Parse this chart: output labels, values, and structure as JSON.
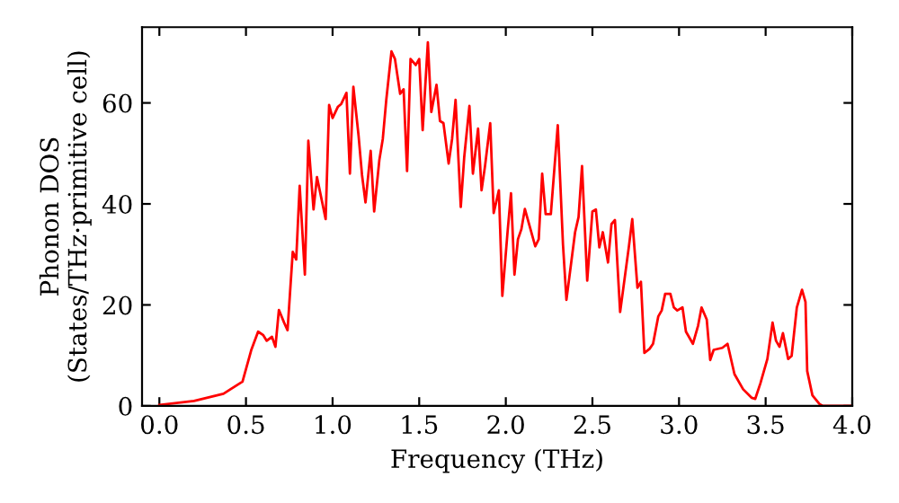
{
  "chart_data": {
    "type": "line",
    "xlabel": "Frequency (THz)",
    "ylabel": "Phonon DOS\n(States/THz·primitive cell)",
    "xlim": [
      -0.1,
      4.0
    ],
    "ylim": [
      0,
      75
    ],
    "xticks": [
      {
        "value": 0,
        "label": "0.0"
      },
      {
        "value": 0.5,
        "label": "0.5"
      },
      {
        "value": 1,
        "label": "1.0"
      },
      {
        "value": 1.5,
        "label": "1.5"
      },
      {
        "value": 2,
        "label": "2.0"
      },
      {
        "value": 2.5,
        "label": "2.5"
      },
      {
        "value": 3,
        "label": "3.0"
      },
      {
        "value": 3.5,
        "label": "3.5"
      },
      {
        "value": 4,
        "label": "4.0"
      }
    ],
    "yticks": [
      0,
      20,
      40,
      60
    ],
    "grid": false,
    "legend": false,
    "marker": "none",
    "line_style": "solid",
    "series": [
      {
        "color": "#ff0000",
        "x": [
          0,
          0.2,
          0.37,
          0.48,
          0.53,
          0.57,
          0.6,
          0.62,
          0.65,
          0.67,
          0.69,
          0.72,
          0.74,
          0.77,
          0.79,
          0.81,
          0.84,
          0.86,
          0.89,
          0.91,
          0.96,
          0.98,
          1.0,
          1.03,
          1.05,
          1.08,
          1.1,
          1.12,
          1.15,
          1.17,
          1.19,
          1.22,
          1.24,
          1.27,
          1.29,
          1.31,
          1.34,
          1.36,
          1.39,
          1.41,
          1.43,
          1.45,
          1.48,
          1.5,
          1.52,
          1.55,
          1.57,
          1.6,
          1.62,
          1.64,
          1.67,
          1.69,
          1.71,
          1.74,
          1.76,
          1.79,
          1.81,
          1.84,
          1.86,
          1.88,
          1.91,
          1.93,
          1.96,
          1.98,
          2.01,
          2.03,
          2.05,
          2.07,
          2.09,
          2.11,
          2.17,
          2.19,
          2.21,
          2.23,
          2.26,
          2.3,
          2.33,
          2.35,
          2.4,
          2.42,
          2.44,
          2.47,
          2.5,
          2.52,
          2.54,
          2.56,
          2.59,
          2.61,
          2.63,
          2.66,
          2.71,
          2.73,
          2.76,
          2.78,
          2.8,
          2.83,
          2.85,
          2.88,
          2.9,
          2.92,
          2.95,
          2.97,
          2.99,
          3.02,
          3.04,
          3.08,
          3.11,
          3.13,
          3.16,
          3.18,
          3.2,
          3.25,
          3.28,
          3.32,
          3.37,
          3.42,
          3.44,
          3.47,
          3.51,
          3.54,
          3.56,
          3.58,
          3.6,
          3.63,
          3.65,
          3.68,
          3.71,
          3.73,
          3.74,
          3.77,
          3.81,
          3.83,
          4.0
        ],
        "values": [
          0.2,
          1,
          2.4,
          4.8,
          11,
          14.7,
          14,
          12.9,
          13.7,
          11.7,
          19,
          16.5,
          15,
          30.5,
          29,
          43.6,
          26,
          52.5,
          38.9,
          45.3,
          37,
          59.6,
          57,
          59.2,
          59.8,
          62,
          46,
          63.2,
          53.5,
          45.7,
          40.3,
          50.5,
          38.5,
          48.7,
          52.9,
          60.6,
          70.2,
          68.7,
          61.8,
          62.7,
          46.5,
          68.7,
          67.5,
          68.7,
          54.6,
          72,
          58.2,
          63.6,
          56.4,
          56,
          48,
          52.9,
          60.6,
          39.4,
          49.3,
          59.4,
          46,
          54.9,
          42.7,
          47.5,
          56,
          38.2,
          42.7,
          21.8,
          34.4,
          42.1,
          26,
          33,
          35,
          39,
          31.6,
          33,
          46,
          38,
          38,
          55.6,
          32,
          21,
          34.4,
          37.4,
          47.5,
          24.8,
          38.5,
          38.9,
          31.4,
          34.4,
          28.4,
          36,
          36.8,
          18.6,
          31.4,
          37,
          23.4,
          24.6,
          10.5,
          11.3,
          12.3,
          17.7,
          18.9,
          22.2,
          22.2,
          19.5,
          18.9,
          19.5,
          14.7,
          12.3,
          15.9,
          19.5,
          17.1,
          9.1,
          11.1,
          11.5,
          12.3,
          6.3,
          3.3,
          1.6,
          1.4,
          4.5,
          9.3,
          16.5,
          12.9,
          11.7,
          14.4,
          9.3,
          9.9,
          19.5,
          23,
          20.6,
          6.9,
          2.1,
          0.4,
          0,
          0
        ]
      }
    ]
  }
}
